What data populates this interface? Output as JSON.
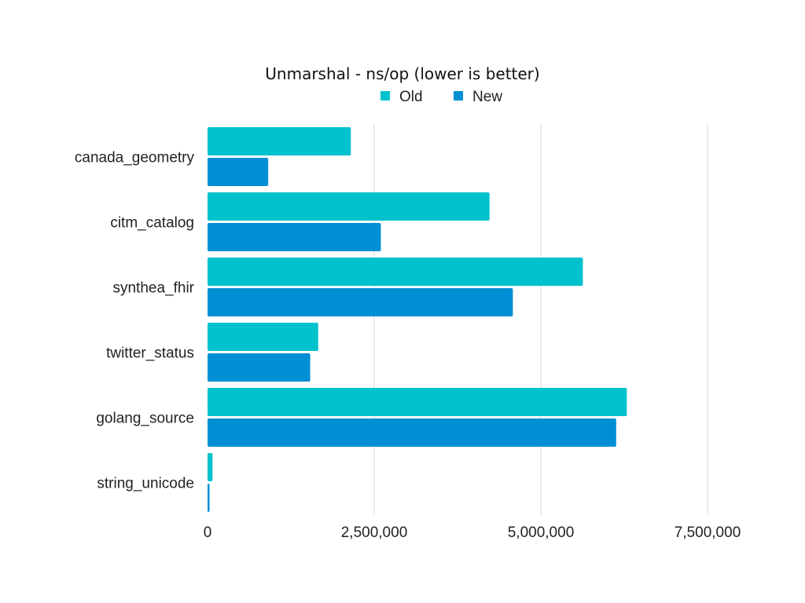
{
  "chart_data": {
    "type": "bar",
    "orientation": "horizontal",
    "title": "Unmarshal - ns/op (lower is better)",
    "xlabel": "",
    "ylabel": "",
    "categories": [
      "canada_geometry",
      "citm_catalog",
      "synthea_fhir",
      "twitter_status",
      "golang_source",
      "string_unicode"
    ],
    "series": [
      {
        "name": "Old",
        "color": "#00c2cc",
        "values": [
          2150000,
          4230000,
          5630000,
          1660000,
          6290000,
          75000
        ]
      },
      {
        "name": "New",
        "color": "#008fd5",
        "values": [
          910000,
          2600000,
          4580000,
          1540000,
          6130000,
          30000
        ]
      }
    ],
    "xlim": [
      0,
      7500000
    ],
    "x_ticks": [
      0,
      2500000,
      5000000,
      7500000
    ],
    "x_tick_labels": [
      "0",
      "2,500,000",
      "5,000,000",
      "7,500,000"
    ],
    "grid": true,
    "legend_position": "top"
  }
}
